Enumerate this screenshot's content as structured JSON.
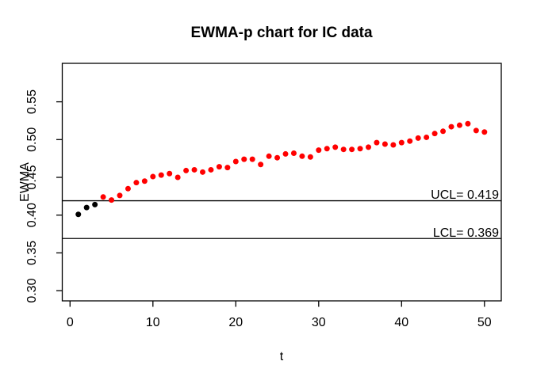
{
  "title": "EWMA-p chart for IC data",
  "chart_data": {
    "type": "scatter",
    "title": "EWMA-p chart for IC data",
    "xlabel": "t",
    "ylabel": "EWMA",
    "x_ticks": [
      0,
      10,
      20,
      30,
      40,
      50
    ],
    "y_tick_labels": [
      "0.30",
      "0.35",
      "0.40",
      "0.45",
      "0.50",
      "0.55"
    ],
    "xlim": [
      -1,
      52
    ],
    "ylim": [
      0.287,
      0.601
    ],
    "grid": false,
    "legend": null,
    "ucl": {
      "label": "UCL= 0.419",
      "value": 0.419
    },
    "lcl": {
      "label": "LCL= 0.369",
      "value": 0.369
    },
    "black_point_count": 3,
    "x": [
      1,
      2,
      3,
      4,
      5,
      6,
      7,
      8,
      9,
      10,
      11,
      12,
      13,
      14,
      15,
      16,
      17,
      18,
      19,
      20,
      21,
      22,
      23,
      24,
      25,
      26,
      27,
      28,
      29,
      30,
      31,
      32,
      33,
      34,
      35,
      36,
      37,
      38,
      39,
      40,
      41,
      42,
      43,
      44,
      45,
      46,
      47,
      48,
      49,
      50
    ],
    "values": [
      0.401,
      0.41,
      0.414,
      0.424,
      0.42,
      0.426,
      0.435,
      0.443,
      0.445,
      0.451,
      0.453,
      0.455,
      0.45,
      0.459,
      0.46,
      0.457,
      0.46,
      0.464,
      0.463,
      0.471,
      0.474,
      0.474,
      0.467,
      0.478,
      0.476,
      0.481,
      0.482,
      0.478,
      0.477,
      0.486,
      0.488,
      0.49,
      0.487,
      0.487,
      0.488,
      0.49,
      0.496,
      0.494,
      0.493,
      0.496,
      0.498,
      0.502,
      0.503,
      0.508,
      0.511,
      0.517,
      0.519,
      0.521,
      0.512,
      0.51
    ],
    "colors": {
      "point": "#FF0000",
      "initial_points": "#000000",
      "limit_lines": "#000000",
      "axis": "#000000",
      "background": "#FFFFFF"
    }
  }
}
